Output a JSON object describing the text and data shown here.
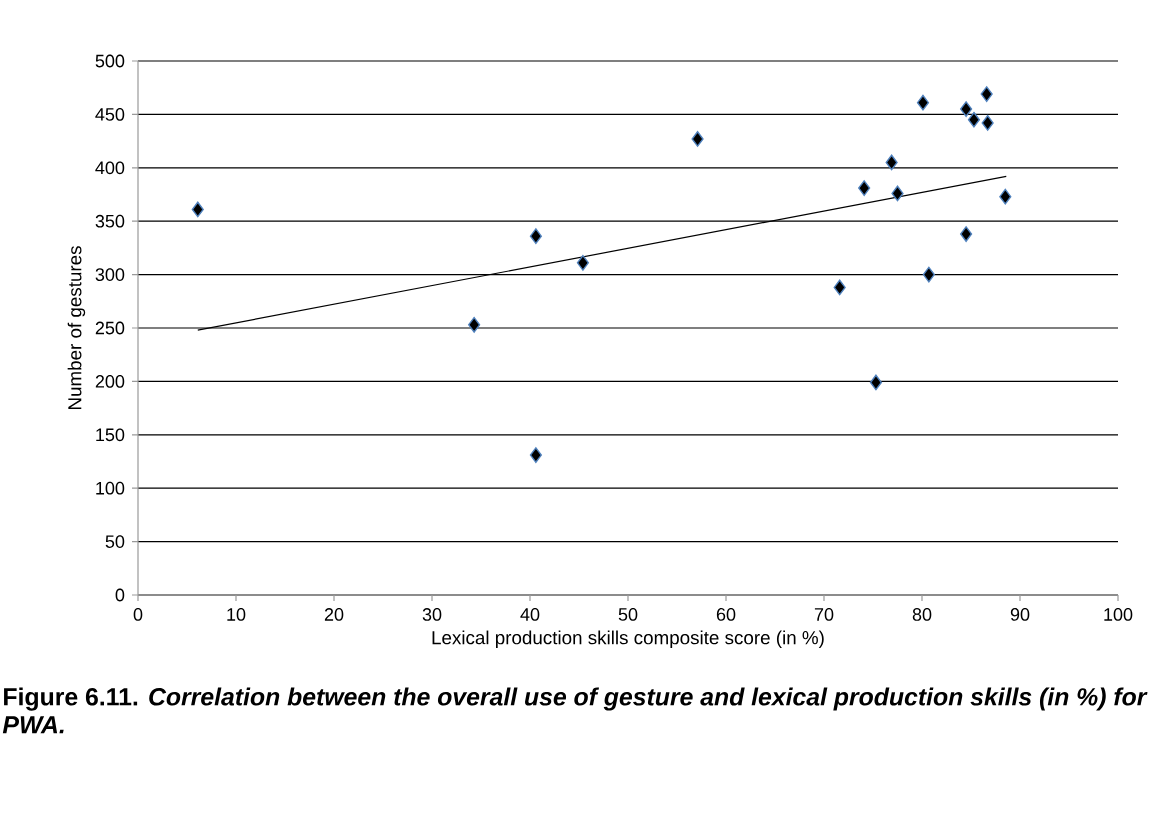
{
  "chart_data": {
    "type": "scatter",
    "xlabel": "Lexical production skills composite score (in %)",
    "ylabel": "Number of gestures",
    "annotations": [
      "Figure 6.11. *Correlation between the overall use of gesture and lexical production skills (in %) for PWA.*"
    ],
    "xlim": [
      0,
      100
    ],
    "xticks": [
      0,
      10,
      20,
      30,
      40,
      50,
      60,
      70,
      80,
      90,
      100
    ],
    "ylim": [
      0,
      500
    ],
    "yticks": [
      0,
      50,
      100,
      150,
      200,
      250,
      300,
      350,
      400,
      450,
      500
    ],
    "grid": "y",
    "series": [
      {
        "color": "#000000",
        "marker": "diamond",
        "x": [
          6.1,
          40.6,
          34.3,
          45.4,
          40.6,
          57.1,
          71.6,
          74.1,
          75.3,
          76.9,
          77.5,
          80.1,
          80.7,
          84.5,
          84.5,
          85.3,
          86.6,
          86.7,
          88.5
        ],
        "values": [
          361,
          336,
          253,
          311,
          131,
          427,
          288,
          381,
          199,
          405,
          376,
          461,
          300,
          455,
          338,
          445,
          469,
          442,
          373
        ]
      },
      {
        "type": "line",
        "color": "#000000",
        "marker": "none",
        "line_style": "solid",
        "x": [
          6.1,
          88.6
        ],
        "values": [
          248,
          392
        ]
      }
    ]
  }
}
